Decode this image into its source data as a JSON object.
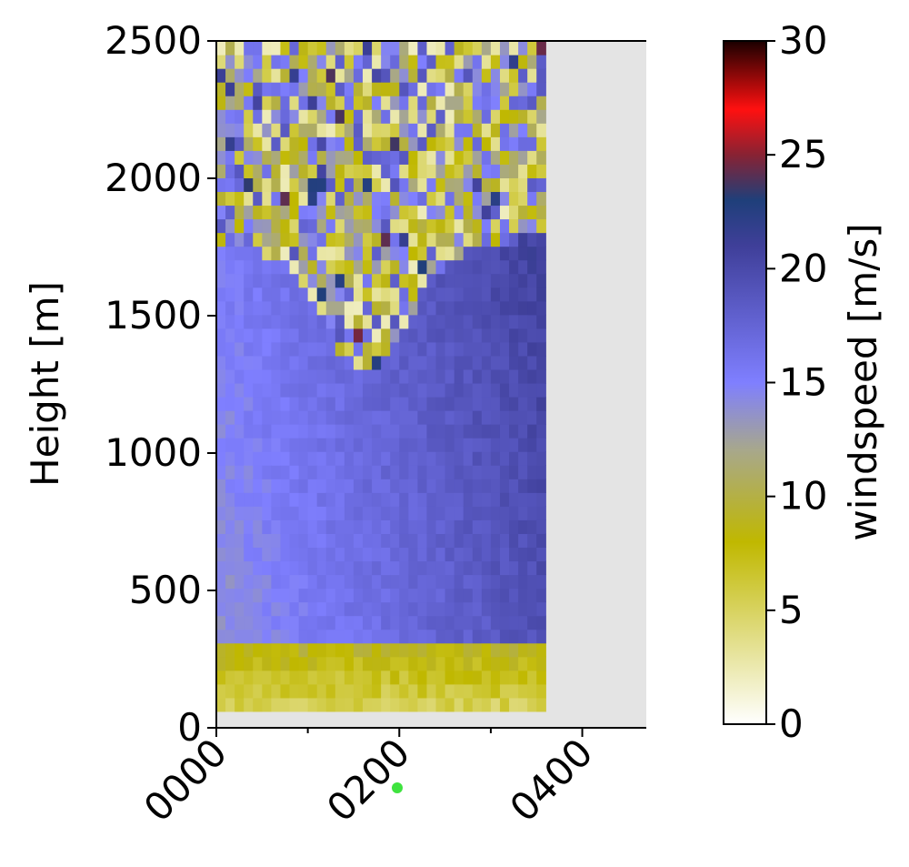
{
  "chart_data": {
    "type": "heatmap",
    "title": "",
    "xlabel": "",
    "ylabel": "Height [m]",
    "x_tick_labels": [
      "0000",
      "0200",
      "0400"
    ],
    "y_ticks": [
      0,
      500,
      1000,
      1500,
      2000,
      2500
    ],
    "ylim": [
      0,
      2500
    ],
    "x_range_hours": [
      0,
      4.7
    ],
    "data_x_range_hours": [
      0,
      3.6
    ],
    "data_min_height": 60,
    "heatmap_columns": 36,
    "heatmap_rows": 49,
    "no_data_color": "#e4e4e4",
    "profile_summary": [
      {
        "height_range": [
          60,
          300
        ],
        "windspeed_range": [
          4,
          9
        ]
      },
      {
        "height_range": [
          300,
          1300
        ],
        "windspeed_range": [
          13,
          20
        ]
      },
      {
        "height_range": [
          1300,
          1750
        ],
        "windspeed_range": [
          8,
          21
        ]
      },
      {
        "height_range": [
          1750,
          2500
        ],
        "windspeed_range": [
          2,
          25
        ]
      }
    ],
    "colorbar": {
      "label": "windspeed [m/s]",
      "range": [
        0,
        30
      ],
      "ticks": [
        0,
        5,
        10,
        15,
        20,
        25,
        30
      ],
      "stops": [
        {
          "value": 0,
          "color": "#ffffff"
        },
        {
          "value": 8,
          "color": "#c0b800"
        },
        {
          "value": 12,
          "color": "#a8a88a"
        },
        {
          "value": 15,
          "color": "#7f7fff"
        },
        {
          "value": 21,
          "color": "#3f3f99"
        },
        {
          "value": 23,
          "color": "#1f3f7a"
        },
        {
          "value": 25,
          "color": "#882233"
        },
        {
          "value": 27,
          "color": "#ff1010"
        },
        {
          "value": 30,
          "color": "#1a0000"
        }
      ]
    }
  }
}
